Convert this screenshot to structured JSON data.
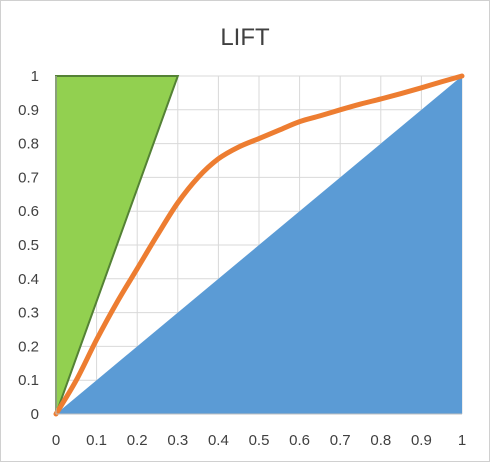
{
  "chart_data": {
    "type": "area",
    "title": "LIFT",
    "xlabel": "",
    "ylabel": "",
    "xlim": [
      0,
      1
    ],
    "ylim": [
      0,
      1
    ],
    "x_ticks": [
      "0",
      "0.1",
      "0.2",
      "0.3",
      "0.4",
      "0.5",
      "0.6",
      "0.7",
      "0.8",
      "0.9",
      "1"
    ],
    "y_ticks": [
      "0",
      "0.1",
      "0.2",
      "0.3",
      "0.4",
      "0.5",
      "0.6",
      "0.7",
      "0.8",
      "0.9",
      "1"
    ],
    "grid": true,
    "legend": "none",
    "series": [
      {
        "type": "area",
        "color": "#5b9bd5",
        "points": [
          [
            0,
            0
          ],
          [
            1,
            1
          ],
          [
            1,
            0
          ]
        ]
      },
      {
        "type": "area",
        "color": "#92d050",
        "edge_color": "#548235",
        "points": [
          [
            0,
            0
          ],
          [
            0.3,
            1
          ],
          [
            0,
            1
          ]
        ]
      },
      {
        "type": "line",
        "color": "#ed7d31",
        "points": [
          [
            0,
            0
          ],
          [
            0.05,
            0.1
          ],
          [
            0.1,
            0.22
          ],
          [
            0.15,
            0.33
          ],
          [
            0.2,
            0.43
          ],
          [
            0.25,
            0.53
          ],
          [
            0.3,
            0.625
          ],
          [
            0.35,
            0.7
          ],
          [
            0.4,
            0.755
          ],
          [
            0.45,
            0.79
          ],
          [
            0.5,
            0.815
          ],
          [
            0.55,
            0.84
          ],
          [
            0.6,
            0.865
          ],
          [
            0.65,
            0.882
          ],
          [
            0.7,
            0.9
          ],
          [
            0.75,
            0.917
          ],
          [
            0.8,
            0.932
          ],
          [
            0.85,
            0.948
          ],
          [
            0.9,
            0.965
          ],
          [
            0.95,
            0.983
          ],
          [
            1,
            1
          ]
        ]
      }
    ]
  }
}
